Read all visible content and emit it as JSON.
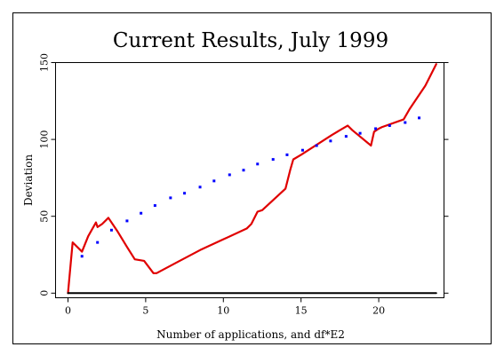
{
  "chart_data": {
    "type": "line",
    "title": "Current Results, July 1999",
    "xlabel": "Number of applications, and df*E2",
    "ylabel": "Deviation",
    "xlim": [
      -0.8,
      24.2
    ],
    "ylim": [
      -3,
      150
    ],
    "x_ticks": [
      0,
      5,
      10,
      15,
      20
    ],
    "y_ticks": [
      0,
      50,
      100,
      150
    ],
    "grid": false,
    "legend": "none",
    "colors": {
      "deviation": "#e00000",
      "expected": "#0000ff",
      "baseline": "#000000"
    },
    "series": [
      {
        "style": "line",
        "color": "#e00000",
        "x": [
          0.0,
          0.3,
          0.9,
          1.3,
          1.8,
          1.9,
          2.2,
          2.6,
          3.2,
          3.8,
          4.3,
          4.9,
          5.5,
          5.7,
          7.0,
          8.5,
          10.0,
          11.5,
          11.8,
          12.2,
          12.5,
          14.0,
          14.3,
          14.5,
          15.0,
          17.0,
          18.0,
          18.3,
          19.5,
          19.7,
          20.0,
          20.2,
          21.6,
          22.0,
          23.0,
          23.7
        ],
        "y": [
          0,
          33,
          27,
          37,
          46,
          43,
          45,
          49,
          40,
          30,
          22,
          21,
          13,
          13,
          20,
          28,
          35,
          42,
          45,
          53,
          54,
          68,
          80,
          87,
          90,
          103,
          109,
          106,
          96,
          105,
          107,
          108,
          113,
          120,
          135,
          149
        ]
      },
      {
        "style": "points",
        "color": "#0000ff",
        "x": [
          0.9,
          1.9,
          2.8,
          3.8,
          4.7,
          5.6,
          6.6,
          7.5,
          8.5,
          9.4,
          10.4,
          11.3,
          12.2,
          13.2,
          14.1,
          15.1,
          16.0,
          16.9,
          17.9,
          18.8,
          19.8,
          20.7,
          21.7,
          22.6
        ],
        "y": [
          24,
          33,
          41,
          47,
          52,
          57,
          62,
          65,
          69,
          73,
          77,
          80,
          84,
          87,
          90,
          93,
          96,
          99,
          102,
          104,
          107,
          109,
          111,
          114
        ]
      },
      {
        "style": "line",
        "color": "#000000",
        "x": [
          0,
          23.7
        ],
        "y": [
          0,
          0
        ]
      }
    ]
  }
}
